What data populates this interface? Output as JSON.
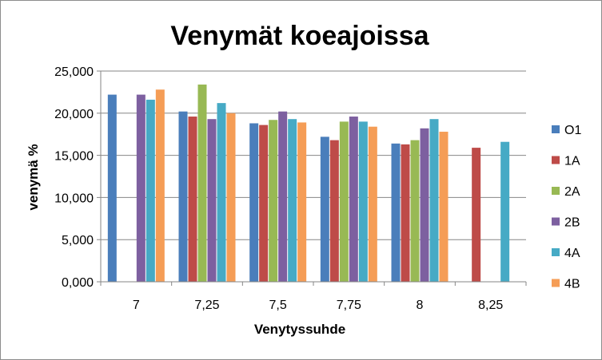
{
  "chart_data": {
    "type": "bar",
    "title": "Venymät koeajoissa",
    "xlabel": "Venytyssuhde",
    "ylabel": "venymä %",
    "ylim": [
      0,
      25
    ],
    "yticks": [
      "0,000",
      "5,000",
      "10,000",
      "15,000",
      "20,000",
      "25,000"
    ],
    "categories": [
      "7",
      "7,25",
      "7,5",
      "7,75",
      "8",
      "8,25"
    ],
    "grid": true,
    "legend_position": "right",
    "series": [
      {
        "name": "O1",
        "color": "#4a7ebb",
        "values": [
          22.2,
          20.2,
          18.8,
          17.2,
          16.4,
          null
        ]
      },
      {
        "name": "1A",
        "color": "#be4b48",
        "values": [
          null,
          19.6,
          18.6,
          16.8,
          16.3,
          15.9
        ]
      },
      {
        "name": "2A",
        "color": "#98b954",
        "values": [
          null,
          23.4,
          19.2,
          19.0,
          16.8,
          null
        ]
      },
      {
        "name": "2B",
        "color": "#7d60a0",
        "values": [
          22.2,
          19.3,
          20.2,
          19.6,
          18.2,
          null
        ]
      },
      {
        "name": "4A",
        "color": "#46aac5",
        "values": [
          21.6,
          21.2,
          19.3,
          19.0,
          19.3,
          16.6
        ]
      },
      {
        "name": "4B",
        "color": "#f59d56",
        "values": [
          22.8,
          20.0,
          18.9,
          18.4,
          17.8,
          null
        ]
      }
    ]
  }
}
